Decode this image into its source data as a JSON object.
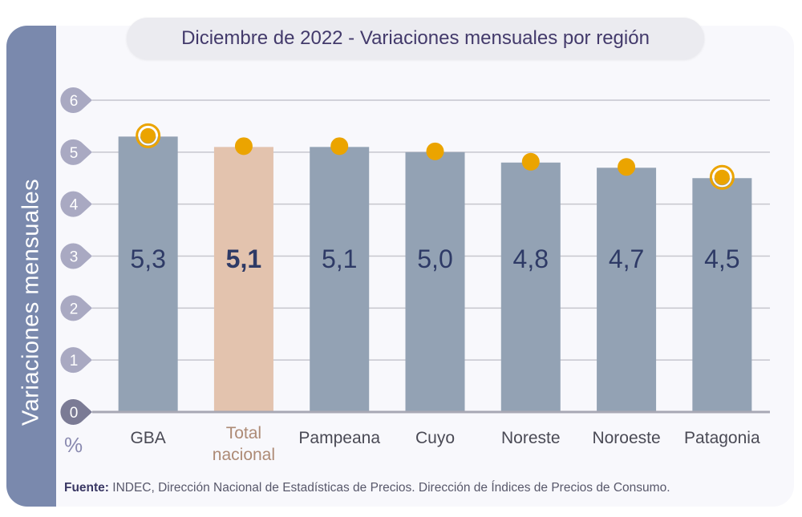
{
  "title": "Diciembre de 2022 - Variaciones mensuales por región",
  "unit_label": "%",
  "source": {
    "label": "Fuente:",
    "text": " INDEC, Dirección Nacional de Estadísticas de Precios. Dirección de Índices de Precios de Consumo."
  },
  "colors": {
    "bar": "#93a2b4",
    "bar_highlight": "#e3c3ae",
    "marker": "#eba400",
    "value_text": "#2e3a66",
    "sidebar": "#7a89ad",
    "tick_bubble": "#a9a9c2",
    "tick_bubble_zero": "#7b7b95"
  },
  "chart_data": {
    "type": "bar",
    "title": "Diciembre de 2022 - Variaciones mensuales por región",
    "xlabel": "",
    "ylabel": "Variaciones  mensuales",
    "yunit": "%",
    "ylim": [
      0,
      6
    ],
    "yticks": [
      "0",
      "1",
      "2",
      "3",
      "4",
      "5",
      "6"
    ],
    "grid": true,
    "categories": [
      "GBA",
      "Total\nnacional",
      "Pampeana",
      "Cuyo",
      "Noreste",
      "Noroeste",
      "Patagonia"
    ],
    "values": [
      5.3,
      5.1,
      5.1,
      5.0,
      4.8,
      4.7,
      4.5
    ],
    "value_labels": [
      "5,3",
      "5,1",
      "5,1",
      "5,0",
      "4,8",
      "4,7",
      "4,5"
    ],
    "highlight_index": 1,
    "ringed_markers": [
      0,
      6
    ],
    "legend": "none"
  }
}
